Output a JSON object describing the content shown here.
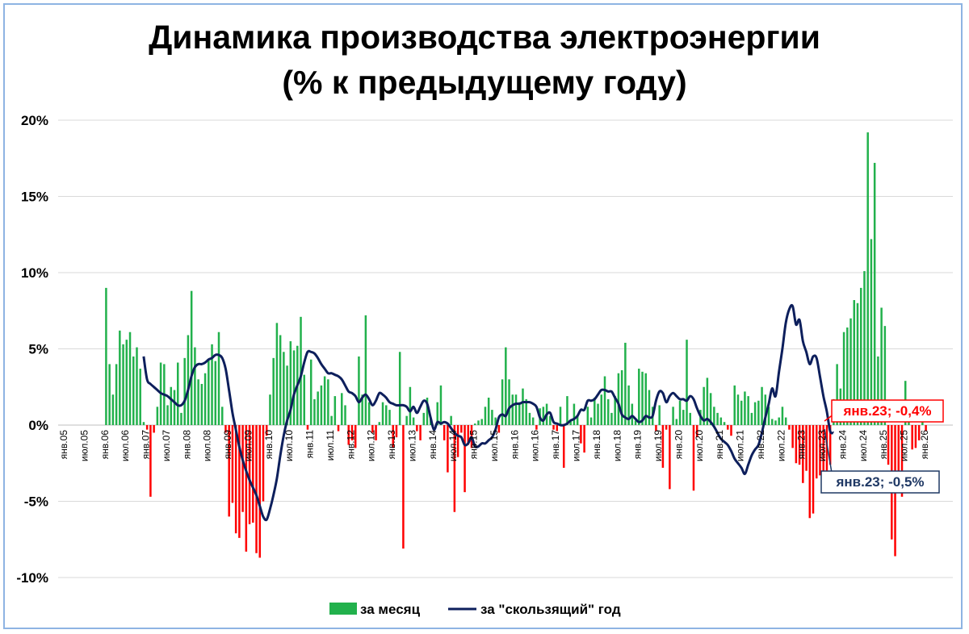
{
  "chart_data": {
    "type": "bar+line",
    "title_line1": "Динамика производства электроэнергии",
    "title_line2": "(% к предыдущему году)",
    "y_ticks": [
      "20%",
      "15%",
      "10%",
      "5%",
      "0%",
      "-5%",
      "-10%"
    ],
    "ylim": [
      -10,
      20
    ],
    "x_tick_labels": [
      "янв.05",
      "июл.05",
      "янв.06",
      "июл.06",
      "янв.07",
      "июл.07",
      "янв.08",
      "июл.08",
      "янв.09",
      "июл.09",
      "янв.10",
      "июл.10",
      "янв.11",
      "июл.11",
      "янв.12",
      "июл.12",
      "янв.13",
      "июл.13",
      "янв.14",
      "июл.14",
      "янв.15",
      "июл.15",
      "янв.16",
      "июл.16",
      "янв.17",
      "июл.17",
      "янв.18",
      "июл.18",
      "янв.19",
      "июл.19",
      "янв.20",
      "июл.20",
      "янв.21",
      "июл.21",
      "янв.22",
      "июл.22",
      "янв.23",
      "июл.23",
      "янв.24",
      "июл.24",
      "янв.25",
      "июл.25",
      "янв.26"
    ],
    "grid": true,
    "legend_position": "bottom",
    "colors": {
      "positive_bar": "#22b14c",
      "negative_bar": "#ff0000",
      "line": "#0d1f5c"
    },
    "series": [
      {
        "name": "за месяц",
        "type": "bar",
        "start": "янв.05",
        "values": [
          0,
          0,
          0,
          0,
          0,
          0,
          0,
          0,
          0,
          0,
          0,
          0,
          9.0,
          4.0,
          2.0,
          4.0,
          6.2,
          5.3,
          5.6,
          6.1,
          4.5,
          5.1,
          3.7,
          0.2,
          -0.3,
          -4.7,
          -0.5,
          1.2,
          4.1,
          4.0,
          1.3,
          2.5,
          2.3,
          4.1,
          0.8,
          4.4,
          5.9,
          8.8,
          5.1,
          3.0,
          2.7,
          3.4,
          4.3,
          5.3,
          4.2,
          6.1,
          1.2,
          -0.5,
          -6.0,
          -5.1,
          -7.1,
          -7.4,
          -5.7,
          -8.3,
          -6.5,
          -6.4,
          -8.4,
          -8.7,
          -5.0,
          -0.7,
          2.0,
          4.4,
          6.7,
          5.9,
          4.8,
          3.9,
          5.5,
          4.9,
          5.2,
          7.1,
          3.3,
          -0.3,
          4.3,
          1.7,
          2.2,
          2.6,
          3.2,
          3.0,
          0.6,
          1.9,
          -0.4,
          2.1,
          1.3,
          -1.3,
          -1.0,
          -1.5,
          4.5,
          2.0,
          7.2,
          1.5,
          -0.5,
          -1.0,
          0.2,
          1.5,
          1.3,
          1.0,
          -1.5,
          -0.8,
          4.8,
          -8.1,
          0.6,
          2.5,
          0.5,
          -0.4,
          -1.0,
          0.8,
          1.8,
          0.5,
          0,
          1.5,
          2.6,
          -1.0,
          -3.1,
          0.6,
          -5.7,
          -2.1,
          -0.5,
          -4.4,
          -1.3,
          -1.5,
          0.1,
          0.3,
          0.4,
          1.2,
          1.8,
          1.0,
          0.5,
          -0.5,
          3.0,
          5.1,
          3.0,
          2.0,
          2.0,
          1.5,
          2.4,
          1.7,
          0.8,
          0.5,
          -0.3,
          1.1,
          1.2,
          1.4,
          0.6,
          -0.3,
          -0.4,
          1.2,
          -2.8,
          1.9,
          0.3,
          1.4,
          0.6,
          -1.2,
          -1.8,
          1.2,
          0.5,
          1.8,
          1.4,
          2.0,
          3.2,
          1.7,
          0.8,
          1.9,
          3.4,
          3.6,
          5.4,
          2.6,
          1.4,
          0.3,
          3.7,
          3.5,
          3.4,
          2.3,
          1.2,
          -0.4,
          1.3,
          -2.8,
          -0.3,
          -4.2,
          1.2,
          0.4,
          1.6,
          1.0,
          5.6,
          0.8,
          -4.3,
          -0.8,
          1.0,
          2.5,
          3.1,
          2.1,
          1.2,
          0.8,
          0.5,
          0.2,
          -0.3,
          -0.7,
          2.6,
          2.0,
          1.6,
          2.2,
          1.9,
          0.8,
          1.5,
          1.6,
          2.5,
          2.0,
          1.2,
          0.4,
          0.3,
          0.5,
          1.2,
          0.5,
          -0.3,
          -1.5,
          -2.5,
          -2.6,
          -3.8,
          -3.0,
          -6.1,
          -5.8,
          -3.5,
          -3.3,
          -4.1,
          -3.4,
          -2.6,
          1.7,
          4.0,
          2.4,
          6.1,
          6.4,
          7.0,
          8.2,
          8.0,
          9.0,
          10.1,
          19.2,
          12.2,
          17.2,
          4.5,
          7.7,
          6.5,
          -2.6,
          -7.5,
          -8.6,
          -3.0,
          -4.7,
          2.9,
          0.7,
          -1.6,
          -1.5,
          -1.0,
          1.0,
          -0.4
        ]
      },
      {
        "name": "за \"скользящий\" год",
        "type": "line",
        "start": "дек.06",
        "values": [
          4.5,
          3.0,
          2.7,
          2.5,
          2.3,
          2.1,
          2.0,
          1.9,
          1.7,
          1.5,
          1.3,
          1.3,
          1.6,
          2.3,
          3.2,
          3.8,
          4.0,
          4.0,
          4.1,
          4.3,
          4.4,
          4.6,
          4.6,
          4.4,
          3.7,
          2.3,
          0.8,
          -0.3,
          -1.4,
          -2.3,
          -3.0,
          -3.6,
          -4.1,
          -4.6,
          -5.3,
          -6.0,
          -6.2,
          -5.5,
          -4.6,
          -3.5,
          -2.0,
          -0.7,
          0.3,
          1.0,
          2.0,
          2.6,
          3.2,
          4.1,
          4.8,
          4.8,
          4.7,
          4.4,
          4.0,
          3.7,
          3.4,
          3.4,
          3.3,
          3.2,
          3.0,
          2.6,
          2.2,
          2.1,
          1.9,
          1.5,
          1.8,
          2.0,
          1.7,
          1.3,
          1.6,
          2.1,
          2.0,
          1.8,
          1.5,
          1.4,
          1.3,
          1.3,
          1.3,
          1.2,
          0.9,
          1.2,
          0.8,
          1.2,
          1.6,
          1.4,
          0.5,
          -0.3,
          0.2,
          0.1,
          0.2,
          0.1,
          -0.2,
          -0.5,
          -0.7,
          -0.8,
          -1.3,
          -1.2,
          -0.8,
          -1.4,
          -1.4,
          -1.2,
          -1.2,
          -1.0,
          -0.8,
          -0.3,
          0.5,
          0.7,
          0.6,
          1.1,
          1.3,
          1.4,
          1.4,
          1.5,
          1.5,
          1.5,
          1.4,
          1.2,
          0.5,
          0.3,
          0.7,
          0.8,
          0.2,
          0.1,
          0.0,
          0.0,
          0.1,
          0.3,
          0.4,
          0.6,
          1.0,
          1.0,
          1.6,
          1.6,
          1.7,
          2.0,
          2.3,
          2.3,
          2.2,
          2.2,
          1.8,
          1.4,
          0.7,
          0.5,
          0.4,
          0.6,
          0.4,
          0.2,
          0.3,
          0.6,
          0.5,
          0.6,
          1.6,
          2.2,
          2.1,
          1.5,
          1.9,
          2.1,
          1.9,
          1.7,
          1.7,
          1.6,
          1.9,
          1.7,
          1.1,
          0.6,
          0.3,
          0.4,
          0.2,
          -0.1,
          -0.5,
          -0.9,
          -1.1,
          -1.3,
          -1.7,
          -2.2,
          -2.5,
          -2.8,
          -3.2,
          -2.6,
          -2.0,
          -1.6,
          -1.3,
          -0.5,
          0.5,
          1.4,
          2.4,
          1.9,
          3.5,
          5.0,
          6.7,
          7.6,
          7.8,
          6.6,
          6.9,
          5.5,
          4.8,
          4.0,
          4.5,
          4.4,
          3.2,
          1.9,
          0.9,
          -0.4,
          -0.5
        ]
      }
    ],
    "annotations": [
      {
        "text": "янв.23; -0,4%",
        "series": "за месяц",
        "color": "#ff0000"
      },
      {
        "text": "янв.23; -0,5%",
        "series": "за \"скользящий\" год",
        "color": "#1f3864"
      }
    ],
    "legend": [
      {
        "label": "за месяц",
        "kind": "bar"
      },
      {
        "label": "за \"скользящий\" год",
        "kind": "line"
      }
    ]
  }
}
